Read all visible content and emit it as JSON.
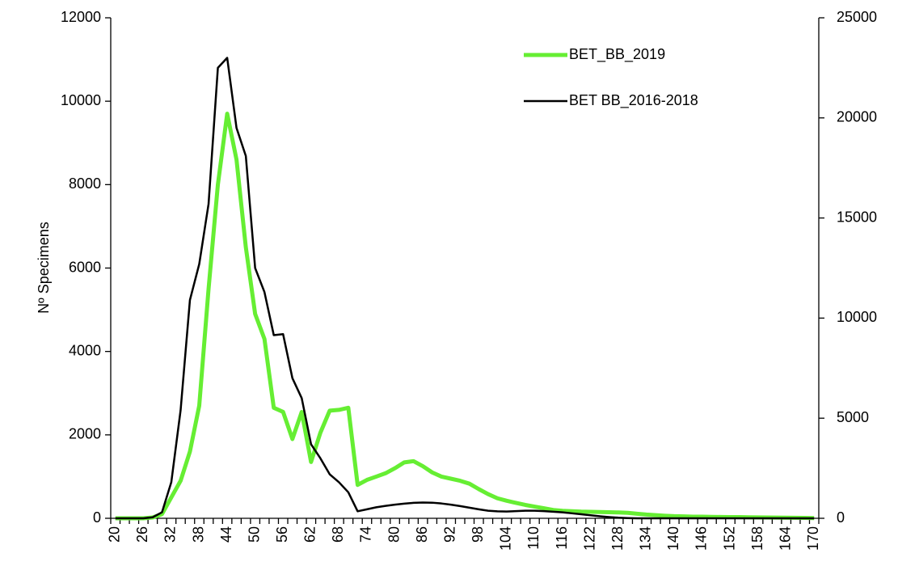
{
  "chart_data": {
    "type": "line",
    "y_label": "Nº Specimens",
    "categories": [
      "20",
      null,
      null,
      "26",
      null,
      null,
      "32",
      null,
      null,
      "38",
      null,
      null,
      "44",
      null,
      null,
      "50",
      null,
      null,
      "56",
      null,
      null,
      "62",
      null,
      null,
      "68",
      null,
      null,
      "74",
      null,
      null,
      "80",
      null,
      null,
      "86",
      null,
      null,
      "92",
      null,
      null,
      "98",
      null,
      null,
      "104",
      null,
      null,
      "110",
      null,
      null,
      "116",
      null,
      null,
      "122",
      null,
      null,
      "128",
      null,
      null,
      "134",
      null,
      null,
      "140",
      null,
      null,
      "146",
      null,
      null,
      "152",
      null,
      null,
      "158",
      null,
      null,
      "164",
      null,
      null,
      "170"
    ],
    "series": [
      {
        "name": "BET_BB_2019",
        "color": "#66ee33",
        "axis": "y",
        "values": [
          0,
          0,
          0,
          0,
          20,
          100,
          500,
          900,
          1600,
          2700,
          5500,
          8000,
          9700,
          8600,
          6500,
          4900,
          4300,
          2650,
          2550,
          1900,
          2550,
          1350,
          2050,
          2580,
          2600,
          2650,
          800,
          920,
          1000,
          1080,
          1200,
          1340,
          1370,
          1250,
          1100,
          1000,
          950,
          900,
          830,
          700,
          580,
          480,
          420,
          370,
          320,
          280,
          240,
          200,
          180,
          170,
          160,
          155,
          150,
          145,
          140,
          130,
          110,
          90,
          75,
          60,
          50,
          45,
          40,
          38,
          35,
          32,
          30,
          28,
          25,
          22,
          20,
          18,
          15,
          12,
          10,
          5
        ]
      },
      {
        "name": "BET BB_2016-2018",
        "color": "#000000",
        "axis": "y2",
        "values": [
          0,
          0,
          0,
          0,
          50,
          300,
          1800,
          5400,
          10900,
          12700,
          15700,
          22500,
          23000,
          19500,
          18100,
          12500,
          11300,
          9150,
          9200,
          7000,
          6000,
          3700,
          3000,
          2200,
          1800,
          1300,
          350,
          450,
          550,
          620,
          680,
          730,
          770,
          790,
          780,
          740,
          680,
          610,
          530,
          450,
          380,
          350,
          340,
          360,
          380,
          380,
          360,
          330,
          300,
          250,
          200,
          150,
          100,
          60,
          30,
          10,
          0,
          0,
          0,
          0,
          0,
          0,
          0,
          0,
          0,
          0,
          0,
          0,
          0,
          0,
          0,
          0,
          0,
          0,
          0,
          0
        ]
      }
    ],
    "ylim": [
      0,
      12000
    ],
    "yticks": [
      0,
      2000,
      4000,
      6000,
      8000,
      10000,
      12000
    ],
    "y2lim": [
      0,
      25000
    ],
    "y2ticks": [
      0,
      5000,
      10000,
      15000,
      20000,
      25000
    ]
  }
}
